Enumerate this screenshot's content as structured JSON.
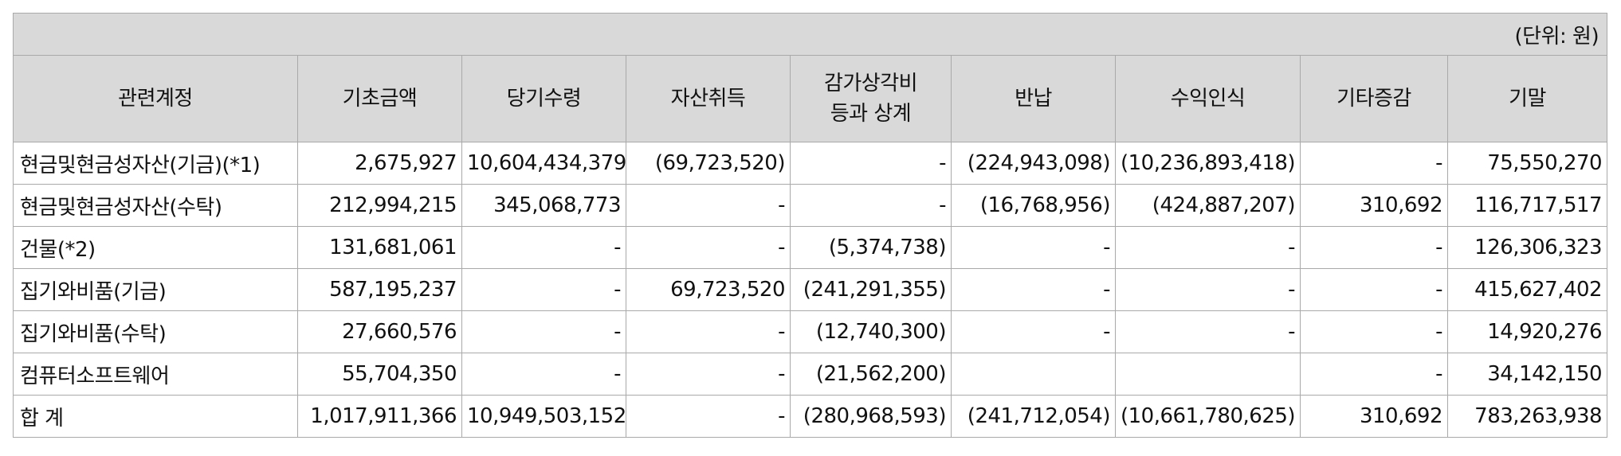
{
  "unit_label": "(단위: 원)",
  "headers": [
    {
      "line1": "관련계정",
      "line2": ""
    },
    {
      "line1": "기초금액",
      "line2": ""
    },
    {
      "line1": "당기수령",
      "line2": ""
    },
    {
      "line1": "자산취득",
      "line2": ""
    },
    {
      "line1": "감가상각비",
      "line2": "등과 상계"
    },
    {
      "line1": "반납",
      "line2": ""
    },
    {
      "line1": "수익인식",
      "line2": ""
    },
    {
      "line1": "기타증감",
      "line2": ""
    },
    {
      "line1": "기말",
      "line2": ""
    }
  ],
  "rows": [
    [
      "현금및현금성자산(기금)(*1)",
      "2,675,927",
      "10,604,434,379",
      "(69,723,520)",
      "-",
      "(224,943,098)",
      "(10,236,893,418)",
      "-",
      "75,550,270"
    ],
    [
      "현금및현금성자산(수탁)",
      "212,994,215",
      "345,068,773",
      "-",
      "-",
      "(16,768,956)",
      "(424,887,207)",
      "310,692",
      "116,717,517"
    ],
    [
      "건물(*2)",
      "131,681,061",
      "-",
      "-",
      "(5,374,738)",
      "-",
      "-",
      "-",
      "126,306,323"
    ],
    [
      "집기와비품(기금)",
      "587,195,237",
      "-",
      "69,723,520",
      "(241,291,355)",
      "-",
      "-",
      "-",
      "415,627,402"
    ],
    [
      "집기와비품(수탁)",
      "27,660,576",
      "-",
      "-",
      "(12,740,300)",
      "-",
      "-",
      "-",
      "14,920,276"
    ],
    [
      "컴퓨터소프트웨어",
      "55,704,350",
      "-",
      "-",
      "(21,562,200)",
      "",
      "",
      "-",
      "34,142,150"
    ],
    [
      "합  계",
      "1,017,911,366",
      "10,949,503,152",
      "-",
      "(280,968,593)",
      "(241,712,054)",
      "(10,661,780,625)",
      "310,692",
      "783,263,938"
    ]
  ]
}
